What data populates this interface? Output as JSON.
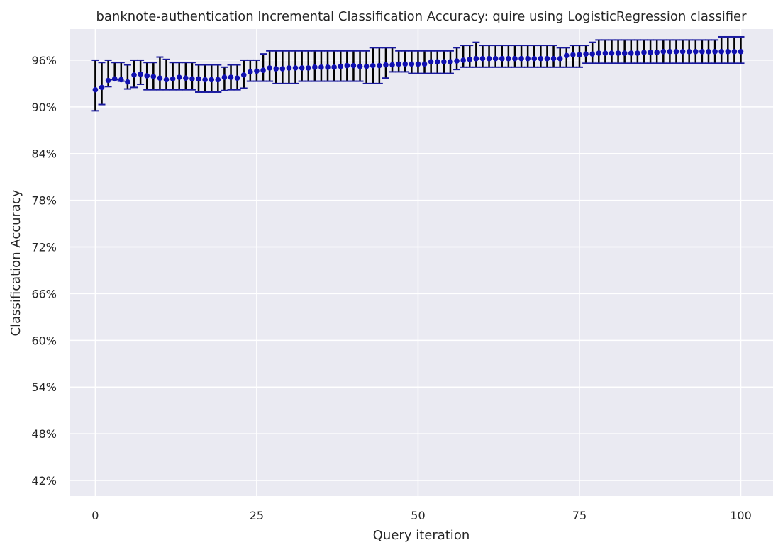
{
  "chart_data": {
    "type": "scatter",
    "title": "banknote-authentication Incremental Classification Accuracy: quire using LogisticRegression classifier",
    "xlabel": "Query iteration",
    "ylabel": "Classification Accuracy",
    "xlim": [
      -4,
      105
    ],
    "ylim": [
      40,
      100
    ],
    "xticks": [
      0,
      25,
      50,
      75,
      100
    ],
    "xtick_labels": [
      "0",
      "25",
      "50",
      "75",
      "100"
    ],
    "yticks": [
      42,
      48,
      54,
      60,
      66,
      72,
      78,
      84,
      90,
      96
    ],
    "ytick_labels": [
      "42%",
      "48%",
      "54%",
      "60%",
      "66%",
      "72%",
      "78%",
      "84%",
      "90%",
      "96%"
    ],
    "grid": true,
    "colors": {
      "background": "#EAEAF2",
      "grid": "#FFFFFF",
      "marker": "#1010B0",
      "errorbar": "#000000",
      "cap": "#1A1AA0"
    },
    "series": [
      {
        "x": [
          0,
          1,
          2,
          3,
          4,
          5,
          6,
          7,
          8,
          9,
          10,
          11,
          12,
          13,
          14,
          15,
          16,
          17,
          18,
          19,
          20,
          21,
          22,
          23,
          24,
          25,
          26,
          27,
          28,
          29,
          30,
          31,
          32,
          33,
          34,
          35,
          36,
          37,
          38,
          39,
          40,
          41,
          42,
          43,
          44,
          45,
          46,
          47,
          48,
          49,
          50,
          51,
          52,
          53,
          54,
          55,
          56,
          57,
          58,
          59,
          60,
          61,
          62,
          63,
          64,
          65,
          66,
          67,
          68,
          69,
          70,
          71,
          72,
          73,
          74,
          75,
          76,
          77,
          78,
          79,
          80,
          81,
          82,
          83,
          84,
          85,
          86,
          87,
          88,
          89,
          90,
          91,
          92,
          93,
          94,
          95,
          96,
          97,
          98,
          99,
          100
        ],
        "y": [
          92.2,
          92.5,
          93.4,
          93.6,
          93.5,
          93.2,
          94.1,
          94.2,
          94.0,
          93.9,
          93.7,
          93.5,
          93.6,
          93.8,
          93.7,
          93.6,
          93.6,
          93.5,
          93.5,
          93.5,
          93.8,
          93.8,
          93.7,
          94.1,
          94.5,
          94.6,
          94.7,
          95.0,
          94.9,
          94.9,
          95.0,
          95.0,
          95.0,
          95.0,
          95.1,
          95.1,
          95.1,
          95.1,
          95.2,
          95.3,
          95.3,
          95.2,
          95.2,
          95.3,
          95.3,
          95.4,
          95.4,
          95.5,
          95.5,
          95.5,
          95.5,
          95.5,
          95.8,
          95.8,
          95.8,
          95.8,
          95.9,
          96.0,
          96.1,
          96.2,
          96.2,
          96.2,
          96.2,
          96.2,
          96.2,
          96.2,
          96.2,
          96.2,
          96.2,
          96.2,
          96.2,
          96.2,
          96.2,
          96.6,
          96.7,
          96.7,
          96.8,
          96.8,
          96.9,
          96.9,
          96.9,
          96.9,
          96.9,
          96.9,
          96.9,
          97.0,
          97.0,
          97.0,
          97.1,
          97.1,
          97.1,
          97.1,
          97.1,
          97.1,
          97.1,
          97.1,
          97.1,
          97.1,
          97.1,
          97.1,
          97.1
        ],
        "lower": [
          89.5,
          90.3,
          92.6,
          93.5,
          93.3,
          92.3,
          92.5,
          92.9,
          92.2,
          92.2,
          92.2,
          92.2,
          92.2,
          92.2,
          92.2,
          92.2,
          91.9,
          91.9,
          91.9,
          91.9,
          92.1,
          92.2,
          92.2,
          92.4,
          93.3,
          93.3,
          93.3,
          93.3,
          93.0,
          93.0,
          93.0,
          93.0,
          93.3,
          93.3,
          93.3,
          93.3,
          93.3,
          93.3,
          93.3,
          93.3,
          93.3,
          93.3,
          93.0,
          93.0,
          93.0,
          93.7,
          94.5,
          94.5,
          94.5,
          94.3,
          94.3,
          94.3,
          94.3,
          94.3,
          94.3,
          94.3,
          94.8,
          95.1,
          95.1,
          95.1,
          95.1,
          95.1,
          95.1,
          95.1,
          95.1,
          95.1,
          95.1,
          95.1,
          95.1,
          95.1,
          95.1,
          95.1,
          95.1,
          95.1,
          95.1,
          95.1,
          95.6,
          95.6,
          95.6,
          95.6,
          95.6,
          95.6,
          95.6,
          95.6,
          95.6,
          95.6,
          95.6,
          95.6,
          95.6,
          95.6,
          95.6,
          95.6,
          95.6,
          95.6,
          95.6,
          95.6,
          95.6,
          95.6,
          95.6,
          95.6,
          95.6
        ],
        "upper": [
          96.0,
          95.7,
          96.0,
          95.7,
          95.7,
          95.4,
          96.0,
          96.0,
          95.7,
          95.7,
          96.4,
          96.1,
          95.7,
          95.7,
          95.7,
          95.7,
          95.4,
          95.4,
          95.4,
          95.4,
          95.1,
          95.4,
          95.4,
          96.0,
          96.0,
          96.0,
          96.8,
          97.2,
          97.2,
          97.2,
          97.2,
          97.2,
          97.2,
          97.2,
          97.2,
          97.2,
          97.2,
          97.2,
          97.2,
          97.2,
          97.2,
          97.2,
          97.2,
          97.6,
          97.6,
          97.6,
          97.6,
          97.2,
          97.2,
          97.2,
          97.2,
          97.2,
          97.2,
          97.2,
          97.2,
          97.2,
          97.6,
          97.9,
          97.9,
          98.3,
          97.9,
          97.9,
          97.9,
          97.9,
          97.9,
          97.9,
          97.9,
          97.9,
          97.9,
          97.9,
          97.9,
          97.9,
          97.6,
          97.6,
          97.9,
          97.9,
          97.9,
          98.3,
          98.6,
          98.6,
          98.6,
          98.6,
          98.6,
          98.6,
          98.6,
          98.6,
          98.6,
          98.6,
          98.6,
          98.6,
          98.6,
          98.6,
          98.6,
          98.6,
          98.6,
          98.6,
          98.6,
          99.0,
          99.0,
          99.0,
          99.0
        ]
      }
    ]
  }
}
